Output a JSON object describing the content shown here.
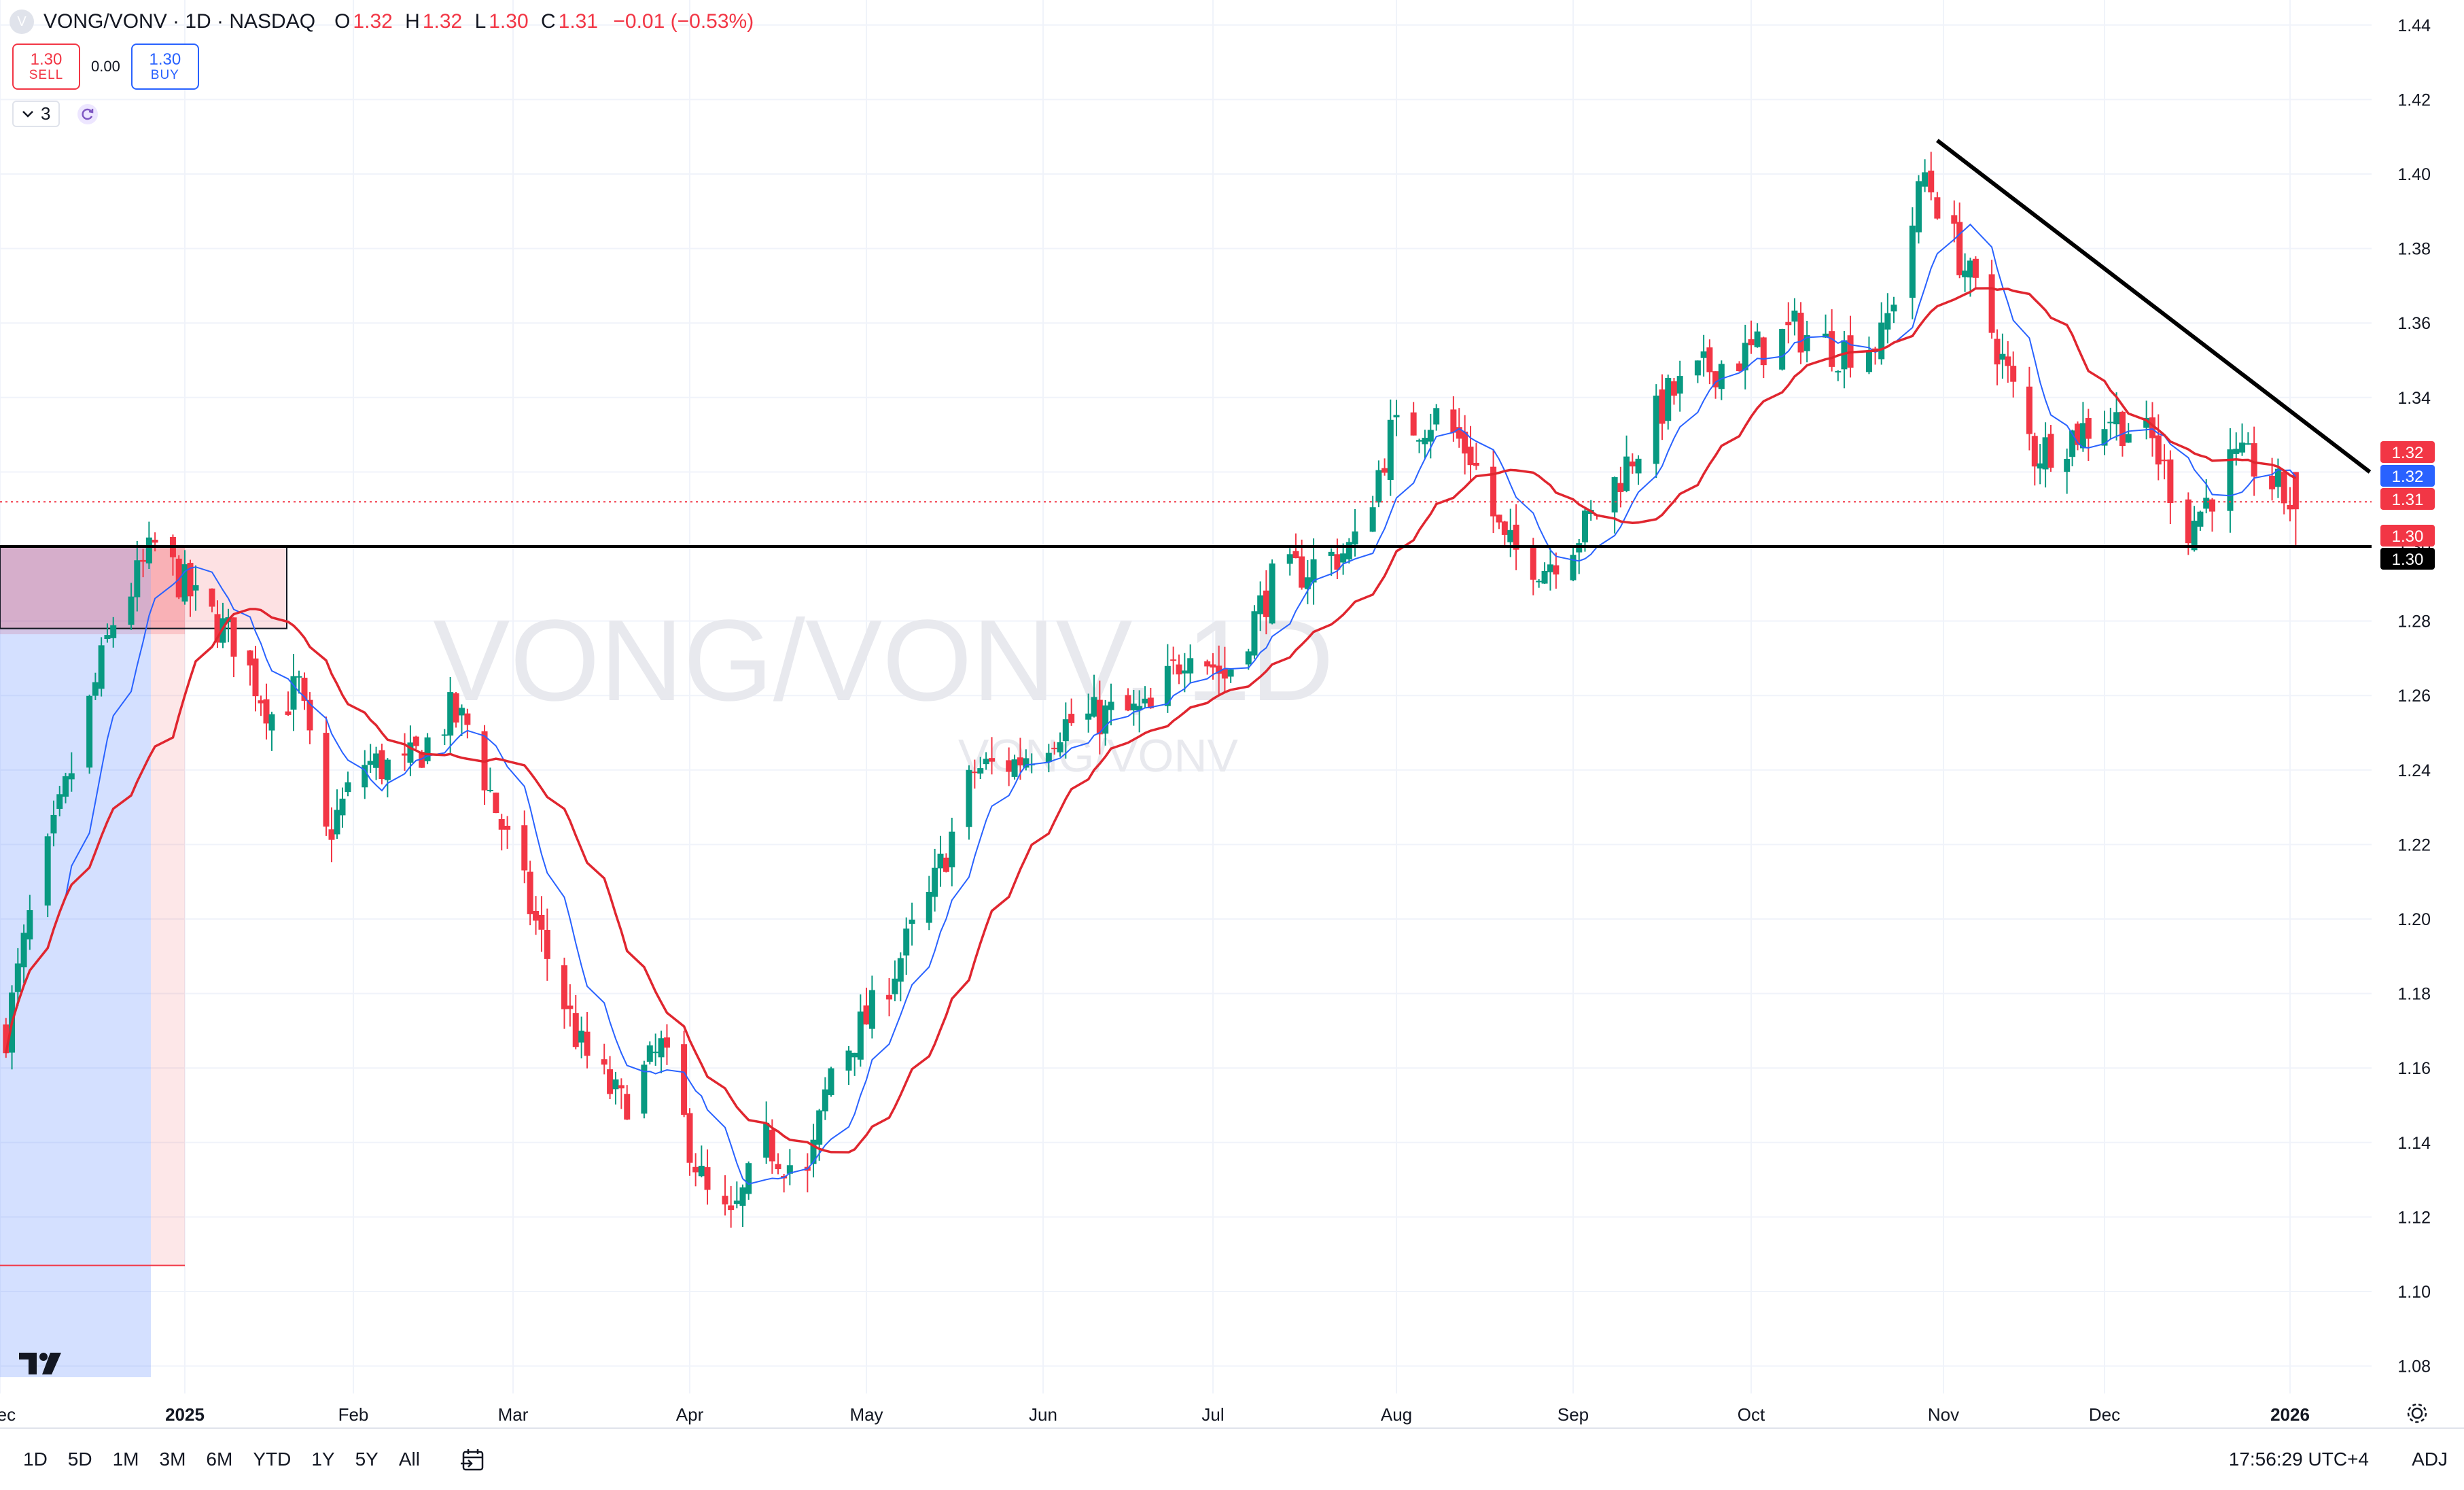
{
  "legend": {
    "symbol_logo": "V",
    "title": "VONG/VONV · 1D · NASDAQ",
    "open_label": "O",
    "open": "1.32",
    "high_label": "H",
    "high": "1.32",
    "low_label": "L",
    "low": "1.30",
    "close_label": "C",
    "close": "1.31",
    "change": "−0.01 (−0.53%)"
  },
  "trade": {
    "sell_price": "1.30",
    "sell_label": "SELL",
    "spread": "0.00",
    "buy_price": "1.30",
    "buy_label": "BUY"
  },
  "indicators": {
    "collapse_icon": "chevron-down-icon",
    "count": "3",
    "refresh_icon": "refresh-icon"
  },
  "watermark": {
    "main": "VONG/VONV, 1D",
    "sub": "VONG/VONV"
  },
  "price_labels": [
    {
      "text": "1.32",
      "color": "#f23645"
    },
    {
      "text": "1.32",
      "color": "#2962ff"
    },
    {
      "text": "1.31",
      "color": "#f23645"
    },
    {
      "text": "1.30",
      "color": "#f23645"
    },
    {
      "text": "1.30",
      "color": "#000000"
    }
  ],
  "colors": {
    "up": "#089981",
    "down": "#f23645",
    "ma_fast": "#2962ff",
    "ma_slow": "#e0262f",
    "grid": "#f0f3fa",
    "text": "#131722",
    "zone_red": "#f23645",
    "zone_blue": "#2962ff"
  },
  "time_ranges": [
    "1D",
    "5D",
    "1M",
    "3M",
    "6M",
    "YTD",
    "1Y",
    "5Y",
    "All"
  ],
  "clock": "17:56:29 UTC+4",
  "adj": "ADJ",
  "chart_data": {
    "type": "candlestick",
    "interval": "1D",
    "symbol": "VONG/VONV",
    "exchange": "NASDAQ",
    "ylim": [
      1.07,
      1.45
    ],
    "x_ticks": [
      "Dec",
      "2025",
      "Feb",
      "Mar",
      "Apr",
      "May",
      "Jun",
      "Jul",
      "Aug",
      "Sep",
      "Oct",
      "Nov",
      "Dec",
      "2026"
    ],
    "y_ticks": [
      "1.08",
      "1.10",
      "1.12",
      "1.14",
      "1.16",
      "1.18",
      "1.20",
      "1.22",
      "1.24",
      "1.26",
      "1.28",
      "1.30",
      "1.32",
      "1.34",
      "1.36",
      "1.38",
      "1.40",
      "1.42",
      "1.44"
    ],
    "grid": true,
    "series": [
      {
        "name": "",
        "style": "moving average, fast",
        "color": "#2962ff"
      },
      {
        "name": "",
        "style": "moving average, slow",
        "color": "#e0262f"
      }
    ],
    "support_level": 1.3,
    "trend_line": {
      "from": [
        "2025-10-31",
        1.409
      ],
      "to": [
        "2026-01-15",
        1.32
      ]
    },
    "close_path": [
      [
        "2024-12-02",
        1.17
      ],
      [
        "2024-12-06",
        1.2
      ],
      [
        "2024-12-13",
        1.24
      ],
      [
        "2024-12-20",
        1.28
      ],
      [
        "2024-12-27",
        1.3
      ],
      [
        "2025-01-03",
        1.285
      ],
      [
        "2025-01-10",
        1.275
      ],
      [
        "2025-01-17",
        1.255
      ],
      [
        "2025-01-22",
        1.262
      ],
      [
        "2025-01-27",
        1.222
      ],
      [
        "2025-02-03",
        1.242
      ],
      [
        "2025-02-10",
        1.24
      ],
      [
        "2025-02-18",
        1.255
      ],
      [
        "2025-02-21",
        1.252
      ],
      [
        "2025-02-27",
        1.225
      ],
      [
        "2025-03-07",
        1.19
      ],
      [
        "2025-03-13",
        1.165
      ],
      [
        "2025-03-20",
        1.15
      ],
      [
        "2025-03-27",
        1.165
      ],
      [
        "2025-04-04",
        1.125
      ],
      [
        "2025-04-08",
        1.118
      ],
      [
        "2025-04-14",
        1.14
      ],
      [
        "2025-04-21",
        1.13
      ],
      [
        "2025-04-25",
        1.16
      ],
      [
        "2025-05-02",
        1.175
      ],
      [
        "2025-05-12",
        1.205
      ],
      [
        "2025-05-20",
        1.24
      ],
      [
        "2025-05-27",
        1.242
      ],
      [
        "2025-06-04",
        1.252
      ],
      [
        "2025-06-13",
        1.255
      ],
      [
        "2025-06-20",
        1.255
      ],
      [
        "2025-06-27",
        1.275
      ],
      [
        "2025-07-03",
        1.265
      ],
      [
        "2025-07-11",
        1.29
      ],
      [
        "2025-07-18",
        1.295
      ],
      [
        "2025-07-25",
        1.3
      ],
      [
        "2025-07-31",
        1.33
      ],
      [
        "2025-08-08",
        1.335
      ],
      [
        "2025-08-14",
        1.325
      ],
      [
        "2025-08-20",
        1.3
      ],
      [
        "2025-08-27",
        1.295
      ],
      [
        "2025-09-03",
        1.305
      ],
      [
        "2025-09-10",
        1.322
      ],
      [
        "2025-09-17",
        1.34
      ],
      [
        "2025-09-24",
        1.348
      ],
      [
        "2025-10-01",
        1.352
      ],
      [
        "2025-10-08",
        1.358
      ],
      [
        "2025-10-15",
        1.353
      ],
      [
        "2025-10-22",
        1.355
      ],
      [
        "2025-10-29",
        1.4
      ],
      [
        "2025-11-04",
        1.378
      ],
      [
        "2025-11-10",
        1.358
      ],
      [
        "2025-11-18",
        1.325
      ],
      [
        "2025-11-25",
        1.33
      ],
      [
        "2025-12-02",
        1.335
      ],
      [
        "2025-12-09",
        1.328
      ],
      [
        "2025-12-15",
        1.305
      ],
      [
        "2025-12-22",
        1.322
      ],
      [
        "2025-12-26",
        1.322
      ],
      [
        "2026-01-02",
        1.31
      ]
    ],
    "last": {
      "open": 1.32,
      "high": 1.32,
      "low": 1.3,
      "close": 1.31
    }
  }
}
